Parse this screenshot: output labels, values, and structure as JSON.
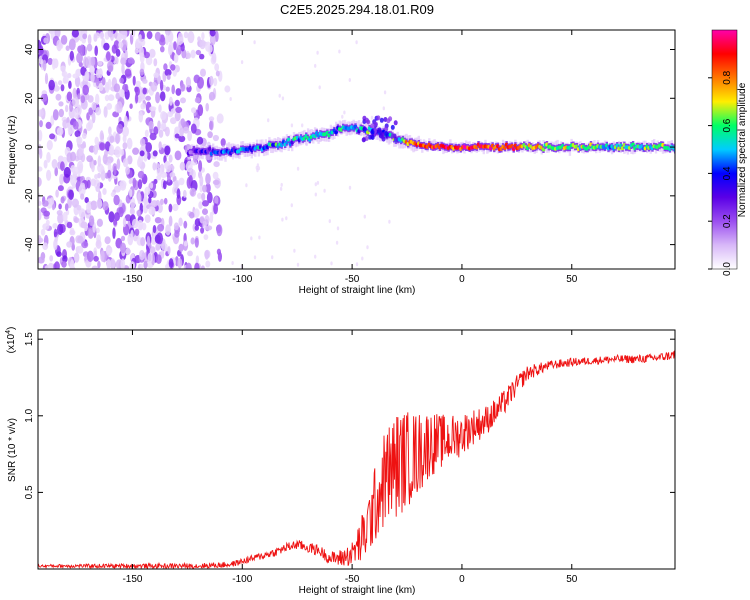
{
  "title": "C2E5.2025.294.18.01.R09",
  "chart_data": [
    {
      "type": "heatmap",
      "name": "spectrogram",
      "xlabel": "Height of straight line (km)",
      "ylabel": "Frequency (Hz)",
      "xlim": [
        -193,
        97
      ],
      "ylim": [
        -50,
        48
      ],
      "xticks": [
        -150,
        -100,
        -50,
        0,
        50
      ],
      "yticks": [
        -40,
        -20,
        0,
        20,
        40
      ],
      "colorbar": {
        "label": "Normalized spectral amplitude",
        "range": [
          0,
          1
        ],
        "ticks": [
          "0.0",
          "0.2",
          "0.4",
          "0.6",
          "0.8"
        ],
        "tick_values": [
          0.0,
          0.2,
          0.4,
          0.6,
          0.8
        ],
        "colormap": [
          "#ffffff",
          "#d8b8f8",
          "#9b4ef0",
          "#5a00e6",
          "#0000ff",
          "#00ccff",
          "#00ff66",
          "#ffee00",
          "#ff7700",
          "#ff0000",
          "#ff00aa"
        ]
      },
      "ridge": {
        "x": [
          -125,
          -110,
          -100,
          -90,
          -80,
          -70,
          -60,
          -55,
          -50,
          -45,
          -40,
          -35,
          -30,
          -25,
          -20,
          -10,
          0,
          20,
          40,
          60,
          80,
          97
        ],
        "freq": [
          -2,
          -2,
          -1,
          0,
          2,
          4,
          6,
          8,
          8,
          7,
          7,
          5,
          3,
          2,
          1,
          0,
          0,
          0,
          0,
          0,
          0,
          0
        ],
        "amp": [
          0.25,
          0.4,
          0.45,
          0.5,
          0.45,
          0.5,
          0.55,
          0.5,
          0.45,
          0.55,
          0.45,
          0.45,
          0.5,
          0.75,
          0.85,
          0.9,
          0.88,
          0.85,
          0.65,
          0.6,
          0.55,
          0.6
        ]
      },
      "noise_region_x": [
        -193,
        -110
      ]
    },
    {
      "type": "line",
      "name": "snr",
      "xlabel": "Height of straight line (km)",
      "ylabel": "SNR (10 * v/v)",
      "y_multiplier": "(x10",
      "y_multiplier_exp": "4",
      "y_multiplier_close": ")",
      "xlim": [
        -193,
        97
      ],
      "ylim": [
        0,
        1.56
      ],
      "xticks": [
        -150,
        -100,
        -50,
        0,
        50
      ],
      "yticks": [
        0.5,
        1.0,
        1.5
      ],
      "ytick_labels": [
        "0.5",
        "1.0",
        "1.5"
      ],
      "color": "#ee1111",
      "trend": {
        "x": [
          -193,
          -150,
          -120,
          -105,
          -95,
          -85,
          -80,
          -75,
          -70,
          -65,
          -60,
          -55,
          -50,
          -45,
          -40,
          -35,
          -30,
          -25,
          -20,
          -15,
          -10,
          -5,
          0,
          5,
          10,
          15,
          20,
          25,
          30,
          40,
          50,
          60,
          70,
          80,
          90,
          97
        ],
        "y": [
          0.02,
          0.02,
          0.02,
          0.03,
          0.07,
          0.11,
          0.14,
          0.16,
          0.14,
          0.12,
          0.07,
          0.07,
          0.1,
          0.2,
          0.4,
          0.6,
          0.68,
          0.72,
          0.75,
          0.82,
          0.83,
          0.85,
          0.88,
          0.93,
          0.96,
          1.02,
          1.1,
          1.2,
          1.28,
          1.33,
          1.35,
          1.36,
          1.37,
          1.37,
          1.38,
          1.4
        ]
      },
      "noise_amp": {
        "x": [
          -193,
          -100,
          -60,
          -50,
          -45,
          -35,
          -30,
          -20,
          -10,
          0,
          10,
          20,
          30,
          40,
          60,
          97
        ],
        "a": [
          0.01,
          0.02,
          0.04,
          0.08,
          0.18,
          0.32,
          0.36,
          0.28,
          0.18,
          0.14,
          0.1,
          0.08,
          0.05,
          0.03,
          0.025,
          0.03
        ]
      },
      "n_points": 1100
    }
  ]
}
